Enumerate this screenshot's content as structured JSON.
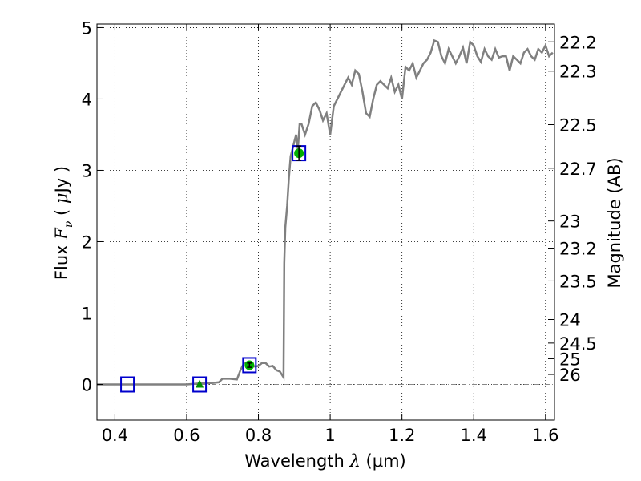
{
  "chart_data": {
    "type": "line",
    "xlabel": "Wavelength  λ (μm)",
    "xlabel_parts": {
      "text": "Wavelength",
      "symbol": "λ",
      "unit": "(μm)"
    },
    "ylabel": "Flux  F_ν  ( μJy )",
    "ylabel_parts": {
      "text": "Flux",
      "symbol": "F",
      "subscript": "ν",
      "unit_open": "( ",
      "unit_mu": "μ",
      "unit": "Jy )"
    },
    "y2label": "Magnitude (AB)",
    "xlim": [
      0.35,
      1.625
    ],
    "ylim": [
      -0.5,
      5.05
    ],
    "xticks": [
      0.4,
      0.6,
      0.8,
      1.0,
      1.2,
      1.4,
      1.6
    ],
    "xtick_labels": [
      "0.4",
      "0.6",
      "0.8",
      "1",
      "1.2",
      "1.4",
      "1.6"
    ],
    "yticks": [
      0,
      1,
      2,
      3,
      4,
      5
    ],
    "ytick_labels": [
      "0",
      "1",
      "2",
      "3",
      "4",
      "5"
    ],
    "y2ticks": [
      {
        "label": "22.2",
        "flux": 4.8
      },
      {
        "label": "22.3",
        "flux": 4.39
      },
      {
        "label": "22.5",
        "flux": 3.64
      },
      {
        "label": "22.7",
        "flux": 3.03
      },
      {
        "label": "23",
        "flux": 2.29
      },
      {
        "label": "23.2",
        "flux": 1.91
      },
      {
        "label": "23.5",
        "flux": 1.45
      },
      {
        "label": "24",
        "flux": 0.91
      },
      {
        "label": "24.5",
        "flux": 0.58
      },
      {
        "label": "25",
        "flux": 0.36
      },
      {
        "label": "26",
        "flux": 0.14
      }
    ],
    "grid": true,
    "zero_line": true,
    "colors": {
      "model": "#808080",
      "observed": "#00b000",
      "box": "#0000cc",
      "zero_line": "#888888"
    },
    "series": [
      {
        "type": "line",
        "x": [
          0.35,
          0.4,
          0.45,
          0.5,
          0.55,
          0.6,
          0.65,
          0.67,
          0.69,
          0.7,
          0.72,
          0.74,
          0.75,
          0.76,
          0.77,
          0.78,
          0.79,
          0.8,
          0.81,
          0.82,
          0.83,
          0.84,
          0.85,
          0.86,
          0.87,
          0.872,
          0.875,
          0.88,
          0.885,
          0.89,
          0.895,
          0.9,
          0.905,
          0.91,
          0.915,
          0.92,
          0.93,
          0.94,
          0.95,
          0.96,
          0.97,
          0.98,
          0.99,
          1.0,
          1.01,
          1.02,
          1.03,
          1.04,
          1.05,
          1.06,
          1.07,
          1.08,
          1.09,
          1.1,
          1.11,
          1.12,
          1.13,
          1.14,
          1.15,
          1.16,
          1.17,
          1.18,
          1.19,
          1.2,
          1.21,
          1.22,
          1.23,
          1.24,
          1.25,
          1.26,
          1.27,
          1.28,
          1.29,
          1.3,
          1.31,
          1.32,
          1.33,
          1.34,
          1.35,
          1.36,
          1.37,
          1.38,
          1.39,
          1.4,
          1.41,
          1.42,
          1.43,
          1.44,
          1.45,
          1.46,
          1.47,
          1.48,
          1.49,
          1.5,
          1.51,
          1.52,
          1.53,
          1.54,
          1.55,
          1.56,
          1.57,
          1.58,
          1.59,
          1.6,
          1.61,
          1.62
        ],
        "y": [
          0.0,
          0.0,
          0.0,
          0.0,
          0.0,
          0.0,
          0.02,
          0.02,
          0.03,
          0.08,
          0.08,
          0.07,
          0.2,
          0.3,
          0.3,
          0.28,
          0.25,
          0.26,
          0.3,
          0.3,
          0.25,
          0.26,
          0.2,
          0.18,
          0.1,
          1.7,
          2.2,
          2.5,
          2.9,
          3.2,
          3.3,
          3.4,
          3.5,
          3.3,
          3.65,
          3.65,
          3.5,
          3.65,
          3.9,
          3.95,
          3.85,
          3.7,
          3.8,
          3.5,
          3.9,
          4.0,
          4.1,
          4.2,
          4.3,
          4.2,
          4.4,
          4.35,
          4.1,
          3.8,
          3.75,
          4.0,
          4.2,
          4.25,
          4.2,
          4.15,
          4.3,
          4.1,
          4.2,
          4.0,
          4.45,
          4.4,
          4.5,
          4.3,
          4.4,
          4.5,
          4.55,
          4.65,
          4.82,
          4.8,
          4.6,
          4.5,
          4.7,
          4.6,
          4.5,
          4.6,
          4.72,
          4.5,
          4.8,
          4.75,
          4.6,
          4.52,
          4.7,
          4.6,
          4.55,
          4.7,
          4.58,
          4.6,
          4.6,
          4.4,
          4.6,
          4.55,
          4.5,
          4.65,
          4.7,
          4.6,
          4.55,
          4.7,
          4.65,
          4.75,
          4.6,
          4.65
        ]
      },
      {
        "type": "scatter",
        "points": [
          {
            "x": 0.435,
            "y": 0.0,
            "marker": "none-box",
            "err": 0
          },
          {
            "x": 0.636,
            "y": 0.0,
            "marker": "triangle",
            "err": 0
          },
          {
            "x": 0.775,
            "y": 0.27,
            "marker": "circle",
            "err": 0.03
          },
          {
            "x": 0.913,
            "y": 3.24,
            "marker": "circle",
            "err": 0.1
          }
        ]
      }
    ]
  }
}
